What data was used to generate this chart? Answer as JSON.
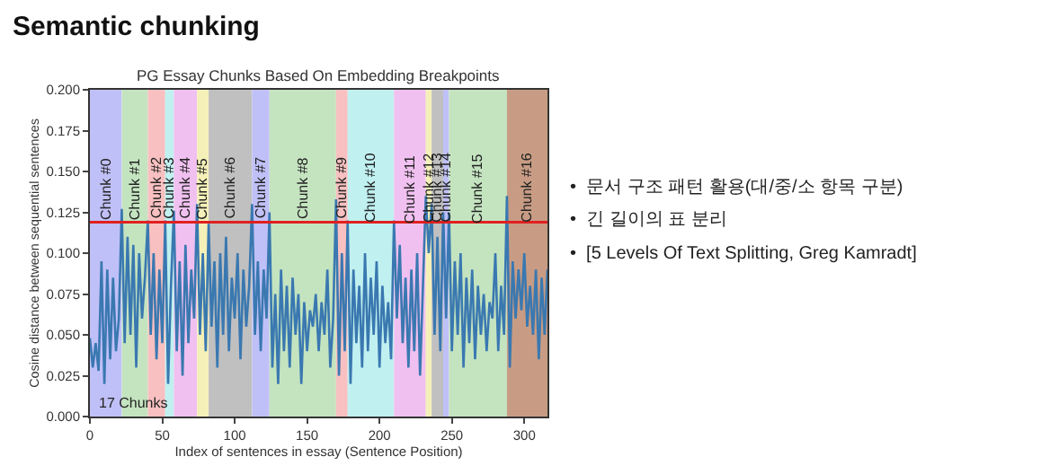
{
  "chart_data": {
    "type": "line",
    "title": "Semantic chunking",
    "subtitle": "PG Essay Chunks Based On Embedding Breakpoints",
    "xlabel": "Index of sentences in essay (Sentence Position)",
    "ylabel": "Cosine distance between sequential sentences",
    "x": [
      0,
      2,
      4,
      6,
      8,
      10,
      12,
      14,
      16,
      18,
      20,
      22,
      24,
      26,
      28,
      30,
      32,
      34,
      36,
      38,
      40,
      42,
      44,
      46,
      48,
      50,
      52,
      54,
      56,
      58,
      60,
      62,
      64,
      66,
      68,
      70,
      72,
      74,
      76,
      78,
      80,
      82,
      84,
      86,
      88,
      90,
      92,
      94,
      96,
      98,
      100,
      102,
      104,
      106,
      108,
      110,
      112,
      114,
      116,
      118,
      120,
      122,
      124,
      126,
      128,
      130,
      132,
      134,
      136,
      138,
      140,
      142,
      144,
      146,
      148,
      150,
      152,
      154,
      156,
      158,
      160,
      162,
      164,
      166,
      168,
      170,
      172,
      174,
      176,
      178,
      180,
      182,
      184,
      186,
      188,
      190,
      192,
      194,
      196,
      198,
      200,
      202,
      204,
      206,
      208,
      210,
      212,
      214,
      216,
      218,
      220,
      222,
      224,
      226,
      228,
      230,
      232,
      234,
      236,
      238,
      240,
      242,
      244,
      246,
      248,
      250,
      252,
      254,
      256,
      258,
      260,
      262,
      264,
      266,
      268,
      270,
      272,
      274,
      276,
      278,
      280,
      282,
      284,
      286,
      288,
      290,
      292,
      294,
      296,
      298,
      300,
      302,
      304,
      306,
      308,
      310,
      312,
      314,
      316
    ],
    "series": [
      {
        "color": "#3a78b0",
        "values": [
          0.048,
          0.03,
          0.045,
          0.028,
          0.095,
          0.02,
          0.09,
          0.035,
          0.085,
          0.04,
          0.06,
          0.127,
          0.045,
          0.11,
          0.05,
          0.105,
          0.03,
          0.1,
          0.06,
          0.085,
          0.12,
          0.05,
          0.1,
          0.035,
          0.09,
          0.045,
          0.12,
          0.02,
          0.08,
          0.126,
          0.04,
          0.095,
          0.025,
          0.105,
          0.045,
          0.09,
          0.06,
          0.13,
          0.05,
          0.1,
          0.04,
          0.118,
          0.055,
          0.095,
          0.03,
          0.1,
          0.05,
          0.11,
          0.04,
          0.085,
          0.06,
          0.1,
          0.035,
          0.09,
          0.055,
          0.08,
          0.13,
          0.05,
          0.095,
          0.04,
          0.09,
          0.06,
          0.125,
          0.03,
          0.075,
          0.02,
          0.09,
          0.04,
          0.08,
          0.03,
          0.085,
          0.05,
          0.075,
          0.02,
          0.07,
          0.04,
          0.065,
          0.055,
          0.075,
          0.04,
          0.07,
          0.05,
          0.09,
          0.03,
          0.06,
          0.133,
          0.025,
          0.1,
          0.04,
          0.12,
          0.02,
          0.09,
          0.045,
          0.08,
          0.03,
          0.1,
          0.04,
          0.085,
          0.05,
          0.095,
          0.03,
          0.08,
          0.045,
          0.07,
          0.035,
          0.12,
          0.06,
          0.105,
          0.045,
          0.085,
          0.03,
          0.09,
          0.04,
          0.1,
          0.025,
          0.08,
          0.135,
          0.1,
          0.13,
          0.05,
          0.11,
          0.04,
          0.125,
          0.06,
          0.125,
          0.04,
          0.095,
          0.05,
          0.1,
          0.03,
          0.085,
          0.045,
          0.09,
          0.035,
          0.08,
          0.05,
          0.075,
          0.04,
          0.07,
          0.06,
          0.1,
          0.04,
          0.08,
          0.05,
          0.135,
          0.03,
          0.095,
          0.06,
          0.09,
          0.065,
          0.1,
          0.055,
          0.08,
          0.05,
          0.09,
          0.035,
          0.085,
          0.05,
          0.09
        ]
      }
    ],
    "xlim": [
      0,
      316
    ],
    "xticks": [
      0,
      50,
      100,
      150,
      200,
      250,
      300
    ],
    "ylim": [
      0,
      0.2
    ],
    "yticks": [
      {
        "value": 0,
        "label": "0.000"
      },
      {
        "value": 0.025,
        "label": "0.025"
      },
      {
        "value": 0.05,
        "label": "0.050"
      },
      {
        "value": 0.075,
        "label": "0.075"
      },
      {
        "value": 0.1,
        "label": "0.100"
      },
      {
        "value": 0.125,
        "label": "0.125"
      },
      {
        "value": 0.15,
        "label": "0.150"
      },
      {
        "value": 0.175,
        "label": "0.175"
      },
      {
        "value": 0.2,
        "label": "0.200"
      }
    ],
    "grid": false,
    "line_style": "solid",
    "marker": "none",
    "ref_lines": [
      {
        "axis": "y",
        "value": 0.119,
        "color": "#e02020"
      }
    ],
    "bands": [
      {
        "axis": "x",
        "from": 0,
        "to": 22,
        "label": "Chunk #0",
        "color": "#c0c0f8"
      },
      {
        "axis": "x",
        "from": 22,
        "to": 40,
        "label": "Chunk #1",
        "color": "#c4e4c0"
      },
      {
        "axis": "x",
        "from": 40,
        "to": 52,
        "label": "Chunk #2",
        "color": "#f8c0c0"
      },
      {
        "axis": "x",
        "from": 52,
        "to": 58,
        "label": "Chunk #3",
        "color": "#c0f0f0"
      },
      {
        "axis": "x",
        "from": 58,
        "to": 74,
        "label": "Chunk #4",
        "color": "#f0c0f0"
      },
      {
        "axis": "x",
        "from": 74,
        "to": 82,
        "label": "Chunk #5",
        "color": "#f4f0b8"
      },
      {
        "axis": "x",
        "from": 82,
        "to": 112,
        "label": "Chunk #6",
        "color": "#c0c0c0"
      },
      {
        "axis": "x",
        "from": 112,
        "to": 124,
        "label": "Chunk #7",
        "color": "#c0c0f8"
      },
      {
        "axis": "x",
        "from": 124,
        "to": 170,
        "label": "Chunk #8",
        "color": "#c4e4c0"
      },
      {
        "axis": "x",
        "from": 170,
        "to": 178,
        "label": "Chunk #9",
        "color": "#f8c0c0"
      },
      {
        "axis": "x",
        "from": 178,
        "to": 210,
        "label": "Chunk #10",
        "color": "#c0f0f0"
      },
      {
        "axis": "x",
        "from": 210,
        "to": 232,
        "label": "Chunk #11",
        "color": "#f0c0f0"
      },
      {
        "axis": "x",
        "from": 232,
        "to": 236,
        "label": "Chunk #12",
        "color": "#f4f0b8"
      },
      {
        "axis": "x",
        "from": 236,
        "to": 244,
        "label": "Chunk #13",
        "color": "#c0c0c0"
      },
      {
        "axis": "x",
        "from": 244,
        "to": 248,
        "label": "Chunk #14",
        "color": "#c0c0f8"
      },
      {
        "axis": "x",
        "from": 248,
        "to": 288,
        "label": "Chunk #15",
        "color": "#c4e4c0"
      },
      {
        "axis": "x",
        "from": 288,
        "to": 316,
        "label": "Chunk #16",
        "color": "#c89c84"
      }
    ],
    "annotations": [
      "17 Chunks",
      "•  문서 구조 패턴 활용(대/중/소 항목 구분)",
      "•  긴 길이의 표 분리",
      "•  [5 Levels Of Text Splitting, Greg Kamradt]"
    ]
  }
}
